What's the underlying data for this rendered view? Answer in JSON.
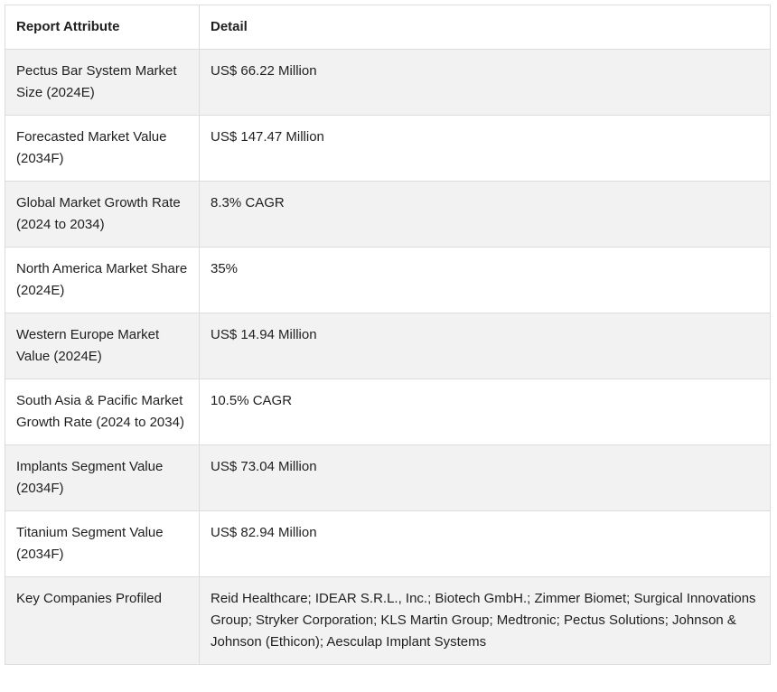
{
  "table": {
    "headers": [
      "Report Attribute",
      "Detail"
    ],
    "rows": [
      {
        "attribute": "Pectus Bar System Market Size (2024E)",
        "detail": "US$ 66.22 Million"
      },
      {
        "attribute": "Forecasted Market Value (2034F)",
        "detail": "US$ 147.47 Million"
      },
      {
        "attribute": "Global Market Growth Rate (2024 to 2034)",
        "detail": "8.3% CAGR"
      },
      {
        "attribute": "North America Market Share (2024E)",
        "detail": "35%"
      },
      {
        "attribute": "Western Europe Market Value (2024E)",
        "detail": "US$ 14.94 Million"
      },
      {
        "attribute": "South Asia & Pacific Market Growth Rate (2024 to 2034)",
        "detail": "10.5% CAGR"
      },
      {
        "attribute": "Implants Segment Value (2034F)",
        "detail": "US$ 73.04 Million"
      },
      {
        "attribute": "Titanium Segment Value (2034F)",
        "detail": "US$ 82.94 Million"
      },
      {
        "attribute": "Key Companies Profiled",
        "detail": "Reid Healthcare; IDEAR S.R.L., Inc.; Biotech GmbH.; Zimmer Biomet; Surgical Innovations Group; Stryker Corporation; KLS Martin Group; Medtronic; Pectus Solutions; Johnson & Johnson (Ethicon); Aesculap Implant Systems"
      }
    ]
  }
}
